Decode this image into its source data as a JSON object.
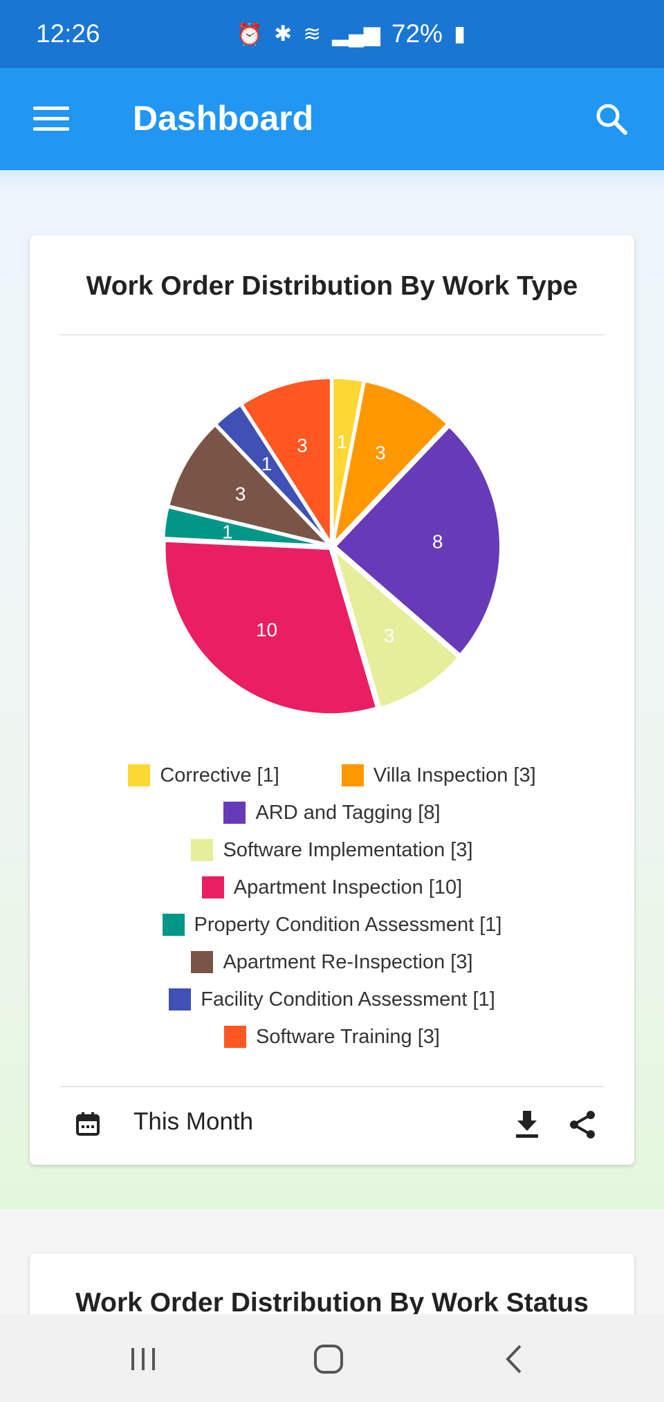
{
  "status_bar": {
    "time": "12:26",
    "battery_pct": "72%"
  },
  "app_bar": {
    "title": "Dashboard"
  },
  "card1": {
    "title": "Work Order Distribution By Work Type",
    "period": "This Month"
  },
  "chart_data": {
    "type": "pie",
    "title": "Work Order Distribution By Work Type",
    "categories": [
      "Corrective",
      "Villa Inspection",
      "ARD and Tagging",
      "Software Implementation",
      "Apartment Inspection",
      "Property Condition Assessment",
      "Apartment Re-Inspection",
      "Facility Condition Assessment",
      "Software Training"
    ],
    "values": [
      1,
      3,
      8,
      3,
      10,
      1,
      3,
      1,
      3
    ],
    "colors": [
      "#fdd835",
      "#ff9800",
      "#673ab7",
      "#e6ee9c",
      "#e91e63",
      "#009688",
      "#795548",
      "#3f51b5",
      "#ff5722"
    ],
    "legend_labels": [
      "Corrective [1]",
      "Villa Inspection [3]",
      "ARD and Tagging [8]",
      "Software Implementation [3]",
      "Apartment Inspection [10]",
      "Property Condition Assessment [1]",
      "Apartment Re-Inspection [3]",
      "Facility Condition Assessment [1]",
      "Software Training [3]"
    ],
    "legend_placement": "bottom"
  },
  "card2": {
    "title": "Work Order Distribution By Work Status"
  }
}
